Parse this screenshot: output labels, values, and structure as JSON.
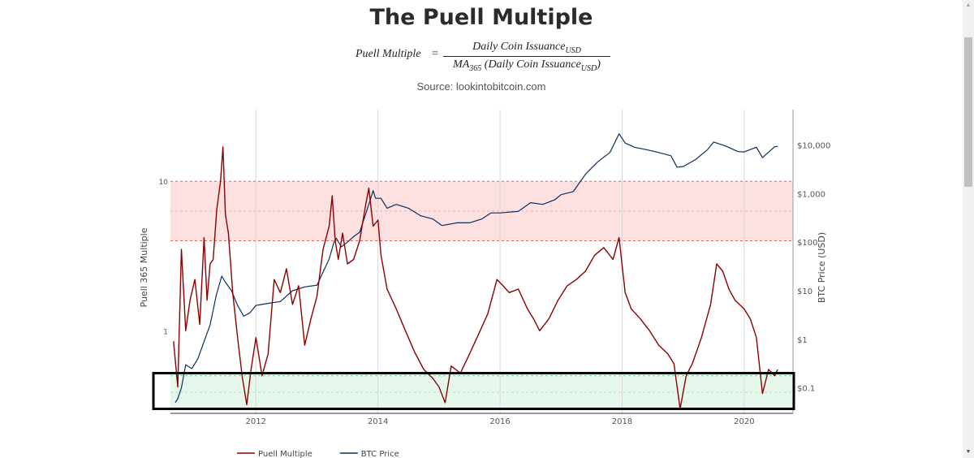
{
  "title": "The Puell Multiple",
  "formula": {
    "lhs": "Puell Multiple",
    "eq": "=",
    "numerator": "Daily Coin Issuance",
    "numerator_sub": "USD",
    "denominator_pre": "MA",
    "denominator_pre_sub": "365",
    "denominator_body": " (Daily Coin Issuance",
    "denominator_body_sub": "USD",
    "denominator_end": ")"
  },
  "source": "Source: lookintobitcoin.com",
  "chart_data": {
    "type": "line",
    "title": "The Puell Multiple",
    "xlabel": "",
    "ylabel_left": "Puell 365 Multiple",
    "ylabel_right": "BTC Price (USD)",
    "x_range": [
      2010.6,
      2020.8
    ],
    "x_ticks": [
      2012,
      2014,
      2016,
      2018,
      2020
    ],
    "x_tick_labels": [
      "2012",
      "2014",
      "2016",
      "2018",
      "2020"
    ],
    "y_left": {
      "scale": "log",
      "range": [
        0.28,
        25
      ],
      "ticks": [
        1,
        10
      ],
      "tick_labels": [
        "1",
        "10"
      ]
    },
    "y_right": {
      "scale": "log",
      "range": [
        0.03,
        30000
      ],
      "ticks": [
        0.1,
        1,
        10,
        100,
        1000,
        10000
      ],
      "tick_labels": [
        "$0.1",
        "$1",
        "$10",
        "$100",
        "$1,000",
        "$10,000"
      ]
    },
    "grid": "vertical",
    "legend": "bottom-left",
    "bands": [
      {
        "name": "high",
        "from": 4.0,
        "to": 10.0,
        "color": "#fde0e0",
        "border": "#e06666"
      },
      {
        "name": "low",
        "from": 0.3,
        "to": 0.5,
        "color": "#e6f8ec",
        "border": "#7fcf9a"
      }
    ],
    "highlight_box": {
      "from": 0.3,
      "to": 0.52,
      "color": "#000000"
    },
    "series": [
      {
        "name": "Puell Multiple",
        "axis": "left",
        "color": "#8b0000",
        "x": [
          2010.65,
          2010.72,
          2010.78,
          2010.85,
          2010.92,
          2011.0,
          2011.08,
          2011.15,
          2011.2,
          2011.25,
          2011.3,
          2011.36,
          2011.42,
          2011.46,
          2011.5,
          2011.55,
          2011.62,
          2011.7,
          2011.78,
          2011.85,
          2011.92,
          2012.0,
          2012.1,
          2012.2,
          2012.3,
          2012.4,
          2012.5,
          2012.6,
          2012.7,
          2012.8,
          2012.9,
          2013.0,
          2013.1,
          2013.2,
          2013.25,
          2013.3,
          2013.35,
          2013.42,
          2013.5,
          2013.6,
          2013.7,
          2013.8,
          2013.85,
          2013.92,
          2014.0,
          2014.05,
          2014.15,
          2014.3,
          2014.45,
          2014.6,
          2014.75,
          2014.9,
          2015.0,
          2015.1,
          2015.2,
          2015.35,
          2015.5,
          2015.65,
          2015.8,
          2015.95,
          2016.05,
          2016.15,
          2016.3,
          2016.45,
          2016.55,
          2016.65,
          2016.8,
          2016.95,
          2017.1,
          2017.25,
          2017.4,
          2017.55,
          2017.7,
          2017.85,
          2017.95,
          2018.05,
          2018.15,
          2018.3,
          2018.45,
          2018.6,
          2018.75,
          2018.85,
          2018.95,
          2019.05,
          2019.15,
          2019.3,
          2019.45,
          2019.55,
          2019.65,
          2019.75,
          2019.85,
          2020.0,
          2020.1,
          2020.2,
          2020.3,
          2020.4,
          2020.5,
          2020.55
        ],
        "y": [
          0.85,
          0.42,
          3.5,
          1.0,
          1.6,
          2.2,
          1.1,
          4.2,
          1.6,
          2.8,
          3.0,
          6.5,
          10.0,
          17.0,
          6.0,
          4.5,
          1.8,
          0.9,
          0.48,
          0.32,
          0.55,
          0.9,
          0.5,
          0.7,
          2.2,
          1.8,
          2.6,
          1.5,
          2.0,
          0.8,
          1.2,
          1.7,
          3.5,
          5.0,
          8.0,
          4.0,
          3.0,
          4.5,
          2.8,
          3.0,
          4.0,
          7.0,
          9.0,
          5.0,
          5.5,
          3.2,
          1.9,
          1.4,
          1.0,
          0.72,
          0.55,
          0.48,
          0.42,
          0.33,
          0.58,
          0.52,
          0.7,
          0.95,
          1.3,
          2.2,
          2.0,
          1.8,
          1.9,
          1.4,
          1.2,
          1.0,
          1.2,
          1.6,
          2.0,
          2.2,
          2.5,
          3.2,
          3.6,
          3.0,
          4.2,
          1.8,
          1.4,
          1.2,
          1.0,
          0.8,
          0.7,
          0.6,
          0.3,
          0.5,
          0.6,
          0.9,
          1.5,
          2.8,
          2.5,
          1.9,
          1.6,
          1.4,
          1.2,
          0.9,
          0.38,
          0.55,
          0.5,
          0.55
        ]
      },
      {
        "name": "BTC Price",
        "axis": "right",
        "color": "#0b2f5c",
        "x": [
          2010.68,
          2010.72,
          2010.78,
          2010.85,
          2010.95,
          2011.05,
          2011.15,
          2011.25,
          2011.35,
          2011.44,
          2011.5,
          2011.6,
          2011.7,
          2011.8,
          2011.9,
          2012.0,
          2012.2,
          2012.4,
          2012.6,
          2012.8,
          2013.0,
          2013.2,
          2013.28,
          2013.32,
          2013.4,
          2013.5,
          2013.6,
          2013.7,
          2013.85,
          2013.92,
          2013.96,
          2014.05,
          2014.15,
          2014.3,
          2014.5,
          2014.7,
          2014.9,
          2015.05,
          2015.3,
          2015.5,
          2015.7,
          2015.85,
          2016.0,
          2016.3,
          2016.5,
          2016.7,
          2016.9,
          2017.0,
          2017.2,
          2017.4,
          2017.6,
          2017.8,
          2017.95,
          2018.05,
          2018.2,
          2018.4,
          2018.6,
          2018.8,
          2018.9,
          2019.0,
          2019.2,
          2019.4,
          2019.5,
          2019.7,
          2019.9,
          2020.0,
          2020.2,
          2020.3,
          2020.5,
          2020.55
        ],
        "y": [
          0.05,
          0.06,
          0.1,
          0.3,
          0.25,
          0.4,
          0.9,
          2.0,
          8.0,
          20.0,
          15.0,
          10.0,
          5.0,
          3.0,
          3.5,
          5.0,
          5.5,
          6.0,
          10.0,
          12.0,
          13.0,
          45.0,
          100.0,
          120.0,
          80.0,
          100.0,
          130.0,
          160.0,
          600.0,
          1150.0,
          800.0,
          800.0,
          500.0,
          600.0,
          500.0,
          350.0,
          300.0,
          220.0,
          250.0,
          250.0,
          300.0,
          400.0,
          400.0,
          430.0,
          650.0,
          600.0,
          750.0,
          950.0,
          1100.0,
          2500.0,
          4500.0,
          7000.0,
          17000.0,
          11000.0,
          9000.0,
          8000.0,
          7000.0,
          6000.0,
          3500.0,
          3600.0,
          5000.0,
          8000.0,
          11500.0,
          9500.0,
          7300.0,
          7200.0,
          9000.0,
          5500.0,
          9200.0,
          9300.0
        ]
      }
    ]
  },
  "legend": {
    "items": [
      {
        "label": "Puell Multiple",
        "color": "#8b0000"
      },
      {
        "label": "BTC Price",
        "color": "#0b2f5c"
      }
    ]
  },
  "icons": {
    "scroll_up": "chevron-up-icon",
    "scroll_down": "chevron-down-icon"
  }
}
